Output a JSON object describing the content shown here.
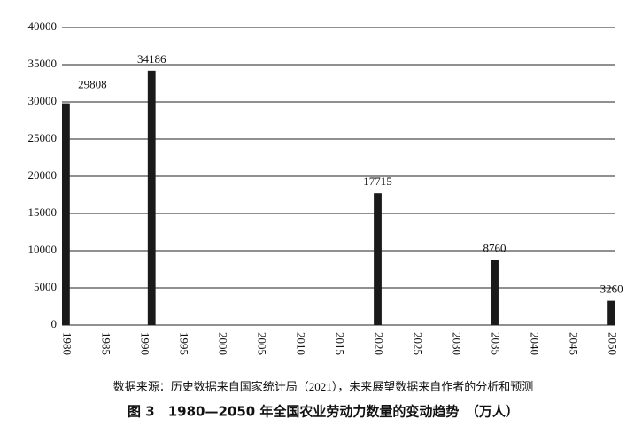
{
  "chart_data": {
    "type": "bar",
    "x": [
      1980,
      1991,
      2020,
      2035,
      2050
    ],
    "values": [
      29808,
      34186,
      17715,
      8760,
      3260
    ],
    "color": "#1a1a1a",
    "xlim": [
      1979.5,
      2050.5
    ],
    "xticks": [
      1980,
      1985,
      1990,
      1995,
      2000,
      2005,
      2010,
      2015,
      2020,
      2025,
      2030,
      2035,
      2040,
      2045,
      2050
    ],
    "ylim": [
      0,
      40000
    ],
    "yticks": [
      0,
      5000,
      10000,
      15000,
      20000,
      25000,
      30000,
      35000,
      40000
    ],
    "grid": true,
    "source": "数据来源：历史数据来自国家统计局（2021），未来展望数据来自作者的分析和预测",
    "title": "图 3　1980—2050 年全国农业劳动力数量的变动趋势　（万人）"
  }
}
